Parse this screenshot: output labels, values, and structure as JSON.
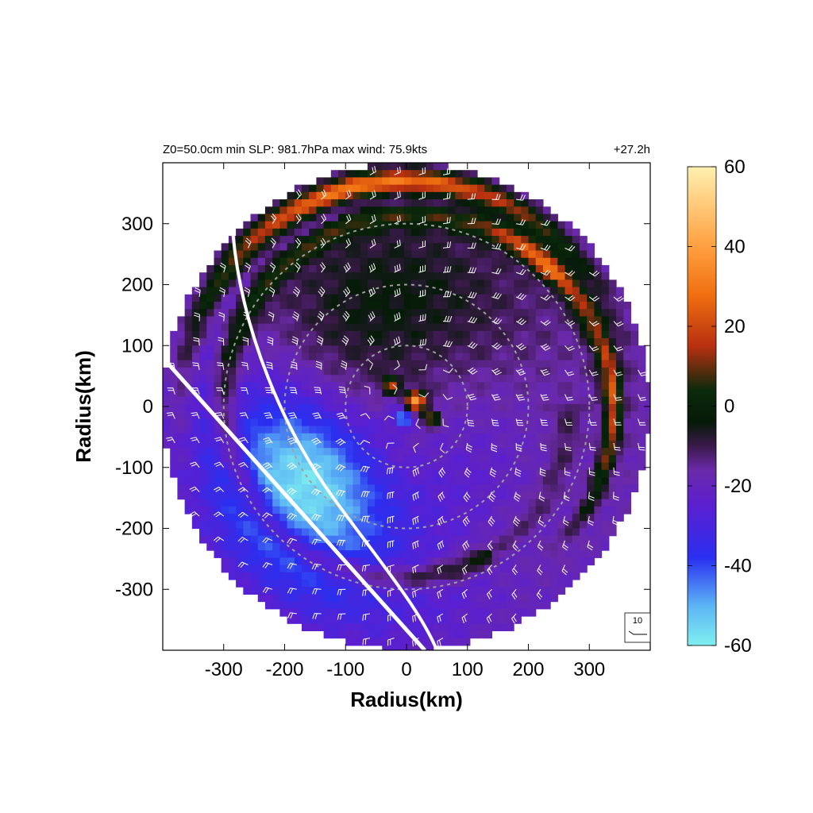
{
  "header": {
    "left": "Z0=50.0cm  min SLP: 981.7hPa   max wind: 75.9kts",
    "right": "+27.2h"
  },
  "colors": {
    "colormap": [
      "#7ff0f0",
      "#5cb4f5",
      "#2a2ff0",
      "#5a1fd0",
      "#6a2aa8",
      "#3a1a4a",
      "#061a08",
      "#0b2a0b",
      "#b83010",
      "#f07010",
      "#ffa040",
      "#fff0b0"
    ],
    "barbs": "#ffffff",
    "track": "#ffffff",
    "rings": "#a0a0a0"
  },
  "chart_data": {
    "type": "heatmap",
    "title": "",
    "xlabel": "Radius(km)",
    "ylabel": "Radius(km)",
    "xlim": [
      -400,
      400
    ],
    "ylim": [
      -400,
      400
    ],
    "xticks": [
      -300,
      -200,
      -100,
      0,
      100,
      200,
      300
    ],
    "yticks": [
      300,
      200,
      100,
      0,
      -100,
      -200,
      -300
    ],
    "domain_radius_km": 400,
    "range_rings_km": [
      100,
      200,
      300
    ],
    "colorbar": {
      "min": -60,
      "max": 60,
      "ticks": [
        60,
        40,
        20,
        0,
        -20,
        -40,
        -60
      ]
    },
    "barb_key": {
      "label": "10"
    },
    "features": [
      {
        "name": "orange rainband arc",
        "value": 35,
        "radius_km": 370,
        "theta_deg": [
          60,
          140
        ]
      },
      {
        "name": "orange rainband arc east",
        "value": 25,
        "radius_km": 340,
        "theta_deg": [
          -30,
          35
        ]
      },
      {
        "name": "light-blue inflow swath",
        "value": -55,
        "radius_km": [
          120,
          300
        ],
        "theta_deg": [
          170,
          260
        ]
      },
      {
        "name": "eyewall dipole max",
        "value": 55,
        "radius_km": 20,
        "theta_deg": 30
      },
      {
        "name": "eyewall dipole min",
        "value": -45,
        "radius_km": 30,
        "theta_deg": 200
      }
    ]
  }
}
